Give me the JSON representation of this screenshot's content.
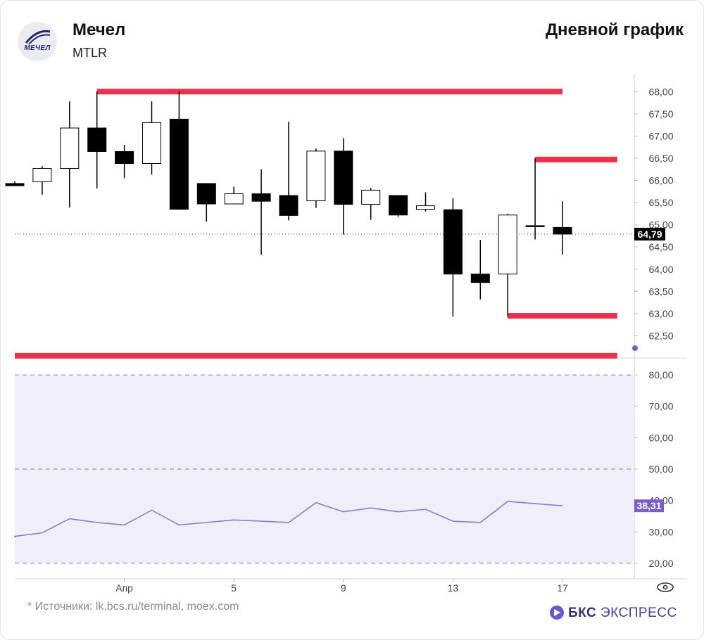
{
  "header": {
    "company": "Мечел",
    "ticker": "MTLR",
    "chart_title": "Дневной график",
    "logo_text": "МЕЧЕЛ"
  },
  "footer": {
    "source": "* Источники: lk.bcs.ru/terminal, moex.com",
    "brand_strong": "БКС",
    "brand_rest": " ЭКСПРЕСС"
  },
  "colors": {
    "up_body": "#ffffff",
    "down_body": "#000000",
    "level_line": "#e8334a",
    "rsi_line": "#8f78d8",
    "rsi_band": "#f1edf9",
    "rsi_badge": "#7b5fc7",
    "price_badge": "#000000"
  },
  "chart_data": [
    {
      "type": "candlestick",
      "x_ticks": [
        "Апр",
        "5",
        "9",
        "13",
        "17"
      ],
      "ylim": [
        62.0,
        68.4
      ],
      "y_ticks": [
        "62,50",
        "63,00",
        "63,50",
        "64,00",
        "64,50",
        "65,00",
        "65,50",
        "66,00",
        "66,50",
        "67,00",
        "67,50",
        "68,00"
      ],
      "last_price_label": "64,79",
      "last_price": 64.79,
      "candles": [
        {
          "o": 65.93,
          "h": 65.98,
          "l": 65.88,
          "c": 65.88
        },
        {
          "o": 65.97,
          "h": 66.32,
          "l": 65.68,
          "c": 66.27
        },
        {
          "o": 66.27,
          "h": 67.78,
          "l": 65.39,
          "c": 67.18
        },
        {
          "o": 67.18,
          "h": 68.0,
          "l": 65.82,
          "c": 66.65
        },
        {
          "o": 66.65,
          "h": 66.8,
          "l": 66.05,
          "c": 66.38
        },
        {
          "o": 66.38,
          "h": 67.78,
          "l": 66.13,
          "c": 67.3
        },
        {
          "o": 67.38,
          "h": 68.0,
          "l": 65.35,
          "c": 65.35
        },
        {
          "o": 65.93,
          "h": 65.93,
          "l": 65.07,
          "c": 65.47
        },
        {
          "o": 65.47,
          "h": 65.86,
          "l": 65.47,
          "c": 65.7
        },
        {
          "o": 65.7,
          "h": 66.25,
          "l": 64.32,
          "c": 65.53
        },
        {
          "o": 65.66,
          "h": 67.32,
          "l": 65.1,
          "c": 65.21
        },
        {
          "o": 65.54,
          "h": 66.72,
          "l": 65.38,
          "c": 66.66
        },
        {
          "o": 66.66,
          "h": 66.95,
          "l": 64.78,
          "c": 65.46
        },
        {
          "o": 65.46,
          "h": 65.83,
          "l": 65.11,
          "c": 65.78
        },
        {
          "o": 65.66,
          "h": 65.66,
          "l": 65.18,
          "c": 65.22
        },
        {
          "o": 65.35,
          "h": 65.73,
          "l": 65.3,
          "c": 65.43
        },
        {
          "o": 65.34,
          "h": 65.6,
          "l": 62.93,
          "c": 63.89
        },
        {
          "o": 63.89,
          "h": 64.66,
          "l": 63.32,
          "c": 63.7
        },
        {
          "o": 63.89,
          "h": 65.25,
          "l": 62.93,
          "c": 65.22
        },
        {
          "o": 64.98,
          "h": 66.5,
          "l": 64.67,
          "c": 64.98
        },
        {
          "o": 64.94,
          "h": 65.53,
          "l": 64.33,
          "c": 64.79
        }
      ],
      "levels": [
        {
          "price": 68.0,
          "from": 3,
          "to": 20
        },
        {
          "price": 66.47,
          "from": 19,
          "to": 22
        },
        {
          "price": 62.95,
          "from": 18,
          "to": 22
        },
        {
          "price": 62.05,
          "from": -0.5,
          "to": 22
        }
      ]
    },
    {
      "type": "line",
      "name": "RSI",
      "ylim": [
        15.5,
        84.5
      ],
      "y_ticks": [
        "20,00",
        "30,00",
        "40,00",
        "50,00",
        "60,00",
        "70,00",
        "80,00"
      ],
      "bands": [
        20,
        50,
        80
      ],
      "last_value_label": "38,31",
      "values": [
        28.6,
        29.7,
        34.2,
        33.0,
        32.2,
        36.9,
        32.2,
        33.0,
        33.8,
        33.4,
        33.0,
        39.3,
        36.4,
        37.6,
        36.4,
        37.2,
        33.4,
        33.0,
        39.7,
        39.0,
        38.31
      ]
    }
  ]
}
